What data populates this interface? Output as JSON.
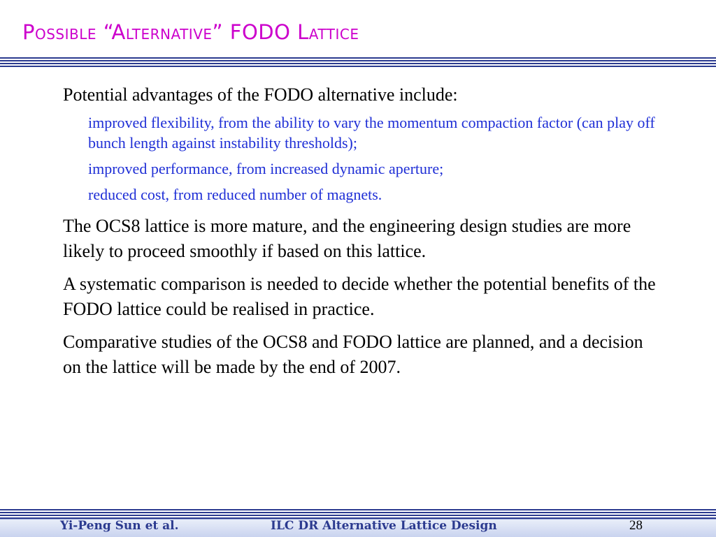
{
  "slide": {
    "title": "Possible “Alternative” FODO Lattice"
  },
  "content": {
    "bullet1": "Potential advantages of the FODO alternative include:",
    "sub_bullets": [
      "improved flexibility, from the ability to vary the momentum compaction factor (can play off bunch length against instability thresholds);",
      "improved performance, from increased dynamic aperture;",
      "reduced cost, from reduced number of magnets."
    ],
    "bullet2": "The OCS8 lattice is more mature, and the engineering design studies are more likely to proceed smoothly if based on this lattice.",
    "bullet3": "A systematic comparison is needed to decide whether the potential benefits of the FODO lattice could be realised in practice.",
    "bullet4": "Comparative studies of the OCS8 and FODO lattice are planned, and a decision on the lattice will be made by the end of 2007."
  },
  "footer": {
    "author": "Yi-Peng Sun et al.",
    "center": "ILC DR Alternative Lattice Design",
    "page": "28"
  },
  "colors": {
    "title": "#cc00cc",
    "rule": "#2b3a8f",
    "sub_bullet_text": "#1f2fd6",
    "footer_text": "#2b3a8f"
  }
}
